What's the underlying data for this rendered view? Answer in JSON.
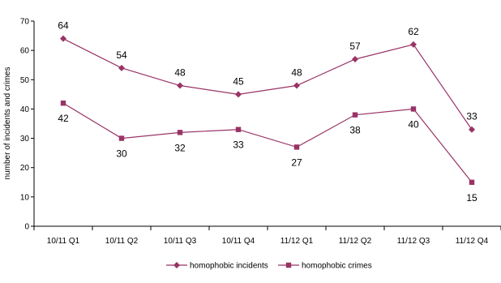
{
  "chart_data": {
    "type": "line",
    "title": "",
    "xlabel": "",
    "ylabel": "number of incidents and crimes",
    "categories": [
      "10/11 Q1",
      "10/11 Q2",
      "10/11 Q3",
      "10/11 Q4",
      "11/12 Q1",
      "11/12 Q2",
      "11/12 Q3",
      "11/12 Q4"
    ],
    "ylim": [
      0,
      70
    ],
    "yticks": [
      0,
      10,
      20,
      30,
      40,
      50,
      60,
      70
    ],
    "grid": false,
    "legend_position": "bottom",
    "series": [
      {
        "name": "homophobic incidents",
        "values": [
          64,
          54,
          48,
          45,
          48,
          57,
          62,
          33
        ],
        "marker": "diamond",
        "label_position": "above",
        "color": "#993366"
      },
      {
        "name": "homophobic crimes",
        "values": [
          42,
          30,
          32,
          33,
          27,
          38,
          40,
          15
        ],
        "marker": "square",
        "label_position": "below",
        "color": "#993366"
      }
    ]
  }
}
